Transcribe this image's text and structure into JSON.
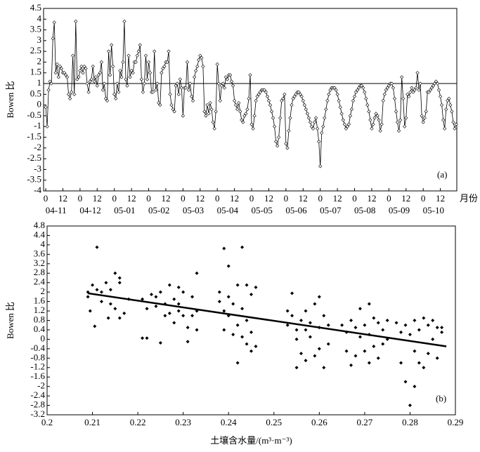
{
  "chart_data": [
    {
      "type": "line",
      "ylabel": "Bowen 比",
      "xlabel": "月份",
      "panel": "(a)",
      "color": "#000000",
      "months": [
        "04-11",
        "04-12",
        "05-01",
        "05-02",
        "05-03",
        "05-04",
        "05-05",
        "05-06",
        "05-07",
        "05-08",
        "05-09",
        "05-10"
      ],
      "reference_line": 1,
      "xlim": [
        -1.5,
        287.5
      ],
      "ylim": [
        -4,
        4.5
      ],
      "yticks": [
        4.5,
        4,
        3.5,
        3,
        2.5,
        2,
        1.5,
        1,
        0.5,
        0,
        -0.5,
        -1,
        -1.5,
        -2,
        -2.5,
        -3,
        -3.5,
        -4
      ],
      "xticks": [
        0,
        12,
        {
          "value": 24,
          "label": "0"
        },
        {
          "value": 36,
          "label": "12"
        },
        {
          "value": 48,
          "label": "0"
        },
        {
          "value": 60,
          "label": "12"
        },
        {
          "value": 72,
          "label": "0"
        },
        {
          "value": 84,
          "label": "12"
        },
        {
          "value": 96,
          "label": "0"
        },
        {
          "value": 108,
          "label": "12"
        },
        {
          "value": 120,
          "label": "0"
        },
        {
          "value": 132,
          "label": "12"
        },
        {
          "value": 144,
          "label": "0"
        },
        {
          "value": 156,
          "label": "12"
        },
        {
          "value": 168,
          "label": "0"
        },
        {
          "value": 180,
          "label": "12"
        },
        {
          "value": 192,
          "label": "0"
        },
        {
          "value": 204,
          "label": "12"
        },
        {
          "value": 216,
          "label": "0"
        },
        {
          "value": 228,
          "label": "12"
        },
        {
          "value": 240,
          "label": "0"
        },
        {
          "value": 252,
          "label": "12"
        },
        {
          "value": 264,
          "label": "0"
        },
        {
          "value": 276,
          "label": "12"
        }
      ],
      "x": [
        0,
        1,
        2,
        3,
        4,
        5,
        6,
        7,
        8,
        9,
        10,
        11,
        12,
        13,
        14,
        15,
        16,
        17,
        18,
        19,
        20,
        21,
        22,
        23,
        24,
        25,
        26,
        27,
        28,
        29,
        30,
        31,
        32,
        33,
        34,
        35,
        36,
        37,
        38,
        39,
        40,
        41,
        42,
        43,
        44,
        45,
        46,
        47,
        48,
        49,
        50,
        51,
        52,
        53,
        54,
        55,
        56,
        57,
        58,
        59,
        60,
        61,
        62,
        63,
        64,
        65,
        66,
        67,
        68,
        69,
        70,
        71,
        72,
        73,
        74,
        75,
        76,
        77,
        78,
        79,
        80,
        81,
        82,
        83,
        84,
        85,
        86,
        87,
        88,
        89,
        90,
        91,
        92,
        93,
        94,
        95,
        96,
        97,
        98,
        99,
        100,
        101,
        102,
        103,
        104,
        105,
        106,
        107,
        108,
        109,
        110,
        111,
        112,
        113,
        114,
        115,
        116,
        117,
        118,
        119,
        120,
        121,
        122,
        123,
        124,
        125,
        126,
        127,
        128,
        129,
        130,
        131,
        132,
        133,
        134,
        135,
        136,
        137,
        138,
        139,
        140,
        141,
        142,
        143,
        144,
        145,
        146,
        147,
        148,
        149,
        150,
        151,
        152,
        153,
        154,
        155,
        156,
        157,
        158,
        159,
        160,
        161,
        162,
        163,
        164,
        165,
        166,
        167,
        168,
        169,
        170,
        171,
        172,
        173,
        174,
        175,
        176,
        177,
        178,
        179,
        180,
        181,
        182,
        183,
        184,
        185,
        186,
        187,
        188,
        189,
        190,
        191,
        192,
        193,
        194,
        195,
        196,
        197,
        198,
        199,
        200,
        201,
        202,
        203,
        204,
        205,
        206,
        207,
        208,
        209,
        210,
        211,
        212,
        213,
        214,
        215,
        216,
        217,
        218,
        219,
        220,
        221,
        222,
        223,
        224,
        225,
        226,
        227,
        228,
        229,
        230,
        231,
        232,
        233,
        234,
        235,
        236,
        237,
        238,
        239,
        240,
        241,
        242,
        243,
        244,
        245,
        246,
        247,
        248,
        249,
        250,
        251,
        252,
        253,
        254,
        255,
        256,
        257,
        258,
        259,
        260,
        261,
        262,
        263,
        264,
        265,
        266,
        267,
        268,
        269,
        270,
        271,
        272,
        273,
        274,
        275,
        276,
        277,
        278,
        279,
        280,
        281,
        282,
        283,
        284,
        285,
        286,
        287
      ],
      "values": [
        -0.1,
        -1.0,
        0.7,
        1.1,
        1.0,
        3.1,
        3.85,
        1.5,
        1.9,
        1.3,
        1.8,
        1.7,
        1.5,
        1.5,
        1.4,
        1.3,
        0.5,
        0.3,
        0.6,
        2.3,
        0.5,
        3.9,
        1.2,
        1.3,
        1.6,
        1.8,
        1.5,
        1.8,
        1.7,
        1.0,
        0.6,
        1.1,
        1.2,
        1.8,
        1.1,
        1.3,
        0.9,
        1.4,
        1.5,
        2.0,
        0.7,
        1.0,
        0.3,
        0.2,
        2.5,
        1.4,
        2.8,
        1.8,
        0.5,
        0.3,
        1.0,
        0.6,
        1.6,
        1.3,
        2.0,
        3.9,
        1.2,
        0.9,
        2.3,
        1.3,
        1.6,
        1.5,
        2.0,
        2.0,
        2.3,
        2.5,
        2.8,
        1.2,
        0.6,
        1.0,
        2.3,
        1.2,
        2.0,
        1.5,
        0.6,
        0.6,
        2.5,
        0.7,
        1.0,
        0.1,
        0.0,
        1.5,
        1.7,
        1.8,
        2.0,
        2.0,
        2.5,
        0.5,
        0.0,
        -0.2,
        -0.3,
        0.9,
        1.0,
        0.5,
        1.2,
        0.8,
        -0.5,
        0.8,
        0.8,
        2.0,
        0.7,
        1.0,
        0.4,
        0.2,
        1.3,
        1.6,
        1.8,
        2.1,
        2.3,
        2.2,
        1.8,
        -0.3,
        -0.5,
        0.0,
        -0.4,
        0.1,
        -0.2,
        -0.8,
        -1.1,
        -0.3,
        1.9,
        1.0,
        0.2,
        0.9,
        1.0,
        0.8,
        1.3,
        1.2,
        1.4,
        1.4,
        1.1,
        0.9,
        0.2,
        0.0,
        -0.2,
        0.1,
        -0.3,
        -0.7,
        -0.8,
        -0.5,
        -0.4,
        -0.2,
        0.3,
        1.4,
        -0.9,
        -1.1,
        -0.5,
        0.2,
        0.4,
        0.5,
        0.6,
        0.7,
        0.7,
        0.7,
        0.6,
        0.4,
        0.2,
        0.0,
        -0.3,
        -0.6,
        -1.0,
        -1.7,
        -1.9,
        -1.5,
        -0.6,
        0.2,
        0.3,
        0.5,
        -1.8,
        -2.0,
        -1.2,
        -0.6,
        0.0,
        0.3,
        0.4,
        0.5,
        0.6,
        0.6,
        0.5,
        0.4,
        0.2,
        0.0,
        -0.2,
        -0.4,
        -0.6,
        -0.8,
        -1.0,
        -1.1,
        -0.8,
        -0.6,
        -1.1,
        -1.7,
        -2.85,
        -1.3,
        -1.0,
        -0.6,
        -0.2,
        0.2,
        0.5,
        0.7,
        0.8,
        0.8,
        0.8,
        0.7,
        0.5,
        0.2,
        -0.1,
        -0.4,
        -0.7,
        -0.9,
        -1.1,
        -1.0,
        -0.9,
        -0.5,
        -0.2,
        0.2,
        0.4,
        0.6,
        0.7,
        0.8,
        0.9,
        0.9,
        0.8,
        0.6,
        0.3,
        0.0,
        -0.3,
        -0.7,
        -1.1,
        -0.9,
        -0.6,
        -0.4,
        -0.5,
        -0.7,
        -1.2,
        -0.9,
        0.2,
        0.5,
        0.7,
        0.8,
        0.9,
        1.0,
        1.0,
        0.8,
        0.3,
        -0.3,
        -0.8,
        -1.2,
        -0.7,
        1.3,
        0.3,
        -1.0,
        -0.6,
        0.5,
        0.4,
        0.6,
        0.8,
        0.6,
        0.7,
        0.8,
        1.5,
        0.7,
        1.0,
        -0.5,
        -0.8,
        -0.6,
        -0.3,
        0.6,
        0.6,
        0.7,
        0.8,
        0.9,
        1.0,
        1.1,
        1.0,
        0.7,
        0.4,
        0.0,
        -0.7,
        -1.1,
        -0.2,
        0.2,
        0.3,
        0.0,
        -0.3,
        -0.8,
        -1.1,
        -0.9
      ]
    },
    {
      "type": "scatter",
      "ylabel": "Bowen 比",
      "xlabel": "土壤含水量/(m³·m⁻³)",
      "panel": "(b)",
      "color": "#000000",
      "xlim": [
        0.2,
        0.29
      ],
      "ylim": [
        -3.2,
        4.8
      ],
      "xticks": [
        0.2,
        0.21,
        0.22,
        0.23,
        0.24,
        0.25,
        0.26,
        0.27,
        0.28,
        0.29
      ],
      "yticks": [
        4.8,
        4.4,
        4,
        3.6,
        3.2,
        2.8,
        2.4,
        2,
        1.6,
        1.2,
        0.8,
        0.4,
        0,
        -0.4,
        -0.8,
        -1.2,
        -1.6,
        -2,
        -2.4,
        -2.8,
        -3.2
      ],
      "trendline": {
        "x": [
          0.209,
          0.288
        ],
        "y": [
          1.95,
          -0.3
        ]
      },
      "x": [
        0.209,
        0.209,
        0.2095,
        0.21,
        0.2105,
        0.211,
        0.211,
        0.212,
        0.212,
        0.213,
        0.2135,
        0.214,
        0.214,
        0.215,
        0.215,
        0.216,
        0.216,
        0.217,
        0.216,
        0.218,
        0.221,
        0.221,
        0.222,
        0.222,
        0.223,
        0.224,
        0.224,
        0.225,
        0.225,
        0.226,
        0.227,
        0.227,
        0.228,
        0.228,
        0.229,
        0.229,
        0.23,
        0.23,
        0.231,
        0.231,
        0.232,
        0.232,
        0.233,
        0.233,
        0.233,
        0.229,
        0.226,
        0.238,
        0.238,
        0.239,
        0.239,
        0.239,
        0.24,
        0.24,
        0.24,
        0.241,
        0.241,
        0.242,
        0.242,
        0.242,
        0.243,
        0.243,
        0.243,
        0.244,
        0.244,
        0.244,
        0.245,
        0.245,
        0.245,
        0.246,
        0.246,
        0.253,
        0.253,
        0.254,
        0.254,
        0.255,
        0.255,
        0.256,
        0.256,
        0.257,
        0.257,
        0.258,
        0.258,
        0.259,
        0.259,
        0.26,
        0.26,
        0.26,
        0.261,
        0.261,
        0.262,
        0.262,
        0.257,
        0.255,
        0.265,
        0.266,
        0.266,
        0.267,
        0.267,
        0.268,
        0.268,
        0.269,
        0.269,
        0.27,
        0.27,
        0.271,
        0.271,
        0.271,
        0.272,
        0.272,
        0.273,
        0.273,
        0.274,
        0.274,
        0.275,
        0.275,
        0.277,
        0.278,
        0.278,
        0.279,
        0.279,
        0.28,
        0.28,
        0.281,
        0.281,
        0.281,
        0.282,
        0.282,
        0.283,
        0.283,
        0.284,
        0.284,
        0.285,
        0.285,
        0.286,
        0.286,
        0.287,
        0.287
      ],
      "values": [
        1.8,
        2.0,
        1.2,
        2.3,
        0.55,
        3.9,
        2.1,
        2.0,
        1.6,
        2.4,
        0.9,
        1.5,
        2.1,
        2.8,
        1.3,
        2.4,
        0.9,
        1.1,
        2.6,
        1.7,
        1.7,
        0.05,
        0.05,
        1.3,
        1.9,
        1.8,
        1.4,
        2.0,
        -0.15,
        1.5,
        2.3,
        1.1,
        1.7,
        0.7,
        1.5,
        1.2,
        1.0,
        2.0,
        0.5,
        -0.1,
        1.8,
        1.0,
        2.8,
        1.2,
        0.4,
        2.2,
        1.0,
        1.6,
        2.0,
        3.85,
        1.2,
        0.4,
        3.1,
        1.8,
        1.0,
        1.5,
        0.2,
        2.3,
        -1.0,
        0.6,
        3.9,
        1.3,
        0.1,
        2.3,
        0.8,
        -0.2,
        1.9,
        0.3,
        -0.5,
        2.2,
        -0.3,
        1.2,
        0.6,
        1.95,
        1.0,
        0.4,
        -1.2,
        0.8,
        -0.6,
        1.2,
        -0.9,
        0.7,
        0.1,
        1.5,
        -0.7,
        1.8,
        0.5,
        -0.4,
        1.0,
        -1.2,
        0.6,
        -0.2,
        0.4,
        0.0,
        0.6,
        0.3,
        -0.5,
        0.8,
        -1.1,
        0.5,
        -0.7,
        1.3,
        0.1,
        0.6,
        -0.5,
        1.5,
        0.2,
        -1.0,
        0.9,
        -0.3,
        0.7,
        -0.8,
        0.4,
        -0.2,
        0.8,
        0.0,
        0.7,
        0.3,
        -1.0,
        0.6,
        -1.8,
        0.2,
        -2.8,
        0.8,
        -0.5,
        -2.0,
        0.4,
        -1.0,
        0.9,
        -1.2,
        0.6,
        -0.6,
        0.8,
        0.0,
        0.5,
        -0.8,
        0.3,
        0.5
      ]
    }
  ]
}
